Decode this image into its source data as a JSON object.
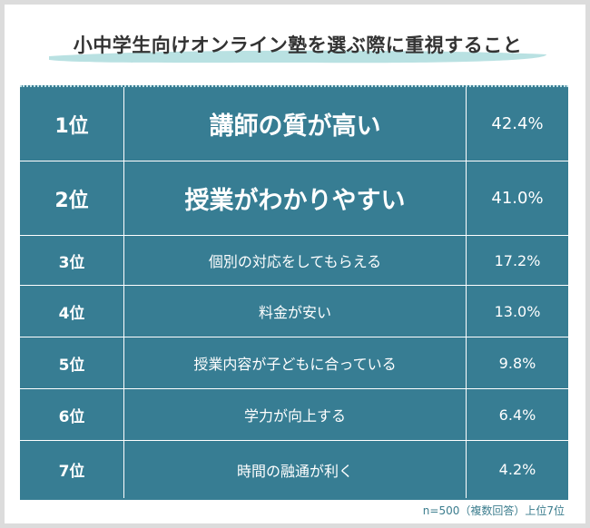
{
  "chart_data": {
    "type": "table",
    "title": "小中学生向けオンライン塾を選ぶ際に重視すること",
    "rows": [
      {
        "rank": "1位",
        "item": "講師の質が高い",
        "value": 42.4,
        "label": "42.4%"
      },
      {
        "rank": "2位",
        "item": "授業がわかりやすい",
        "value": 41.0,
        "label": "41.0%"
      },
      {
        "rank": "3位",
        "item": "個別の対応をしてもらえる",
        "value": 17.2,
        "label": "17.2%"
      },
      {
        "rank": "4位",
        "item": "料金が安い",
        "value": 13.0,
        "label": "13.0%"
      },
      {
        "rank": "5位",
        "item": "授業内容が子どもに合っている",
        "value": 9.8,
        "label": "9.8%"
      },
      {
        "rank": "6位",
        "item": "学力が向上する",
        "value": 6.4,
        "label": "6.4%"
      },
      {
        "rank": "7位",
        "item": "時間の融通が利く",
        "value": 4.2,
        "label": "4.2%"
      }
    ],
    "note": "n=500（複数回答）上位7位"
  },
  "colors": {
    "table_bg": "#377d93",
    "swoosh": "#b9e1e2",
    "title_text": "#333333",
    "note_text": "#3c7d8e"
  }
}
